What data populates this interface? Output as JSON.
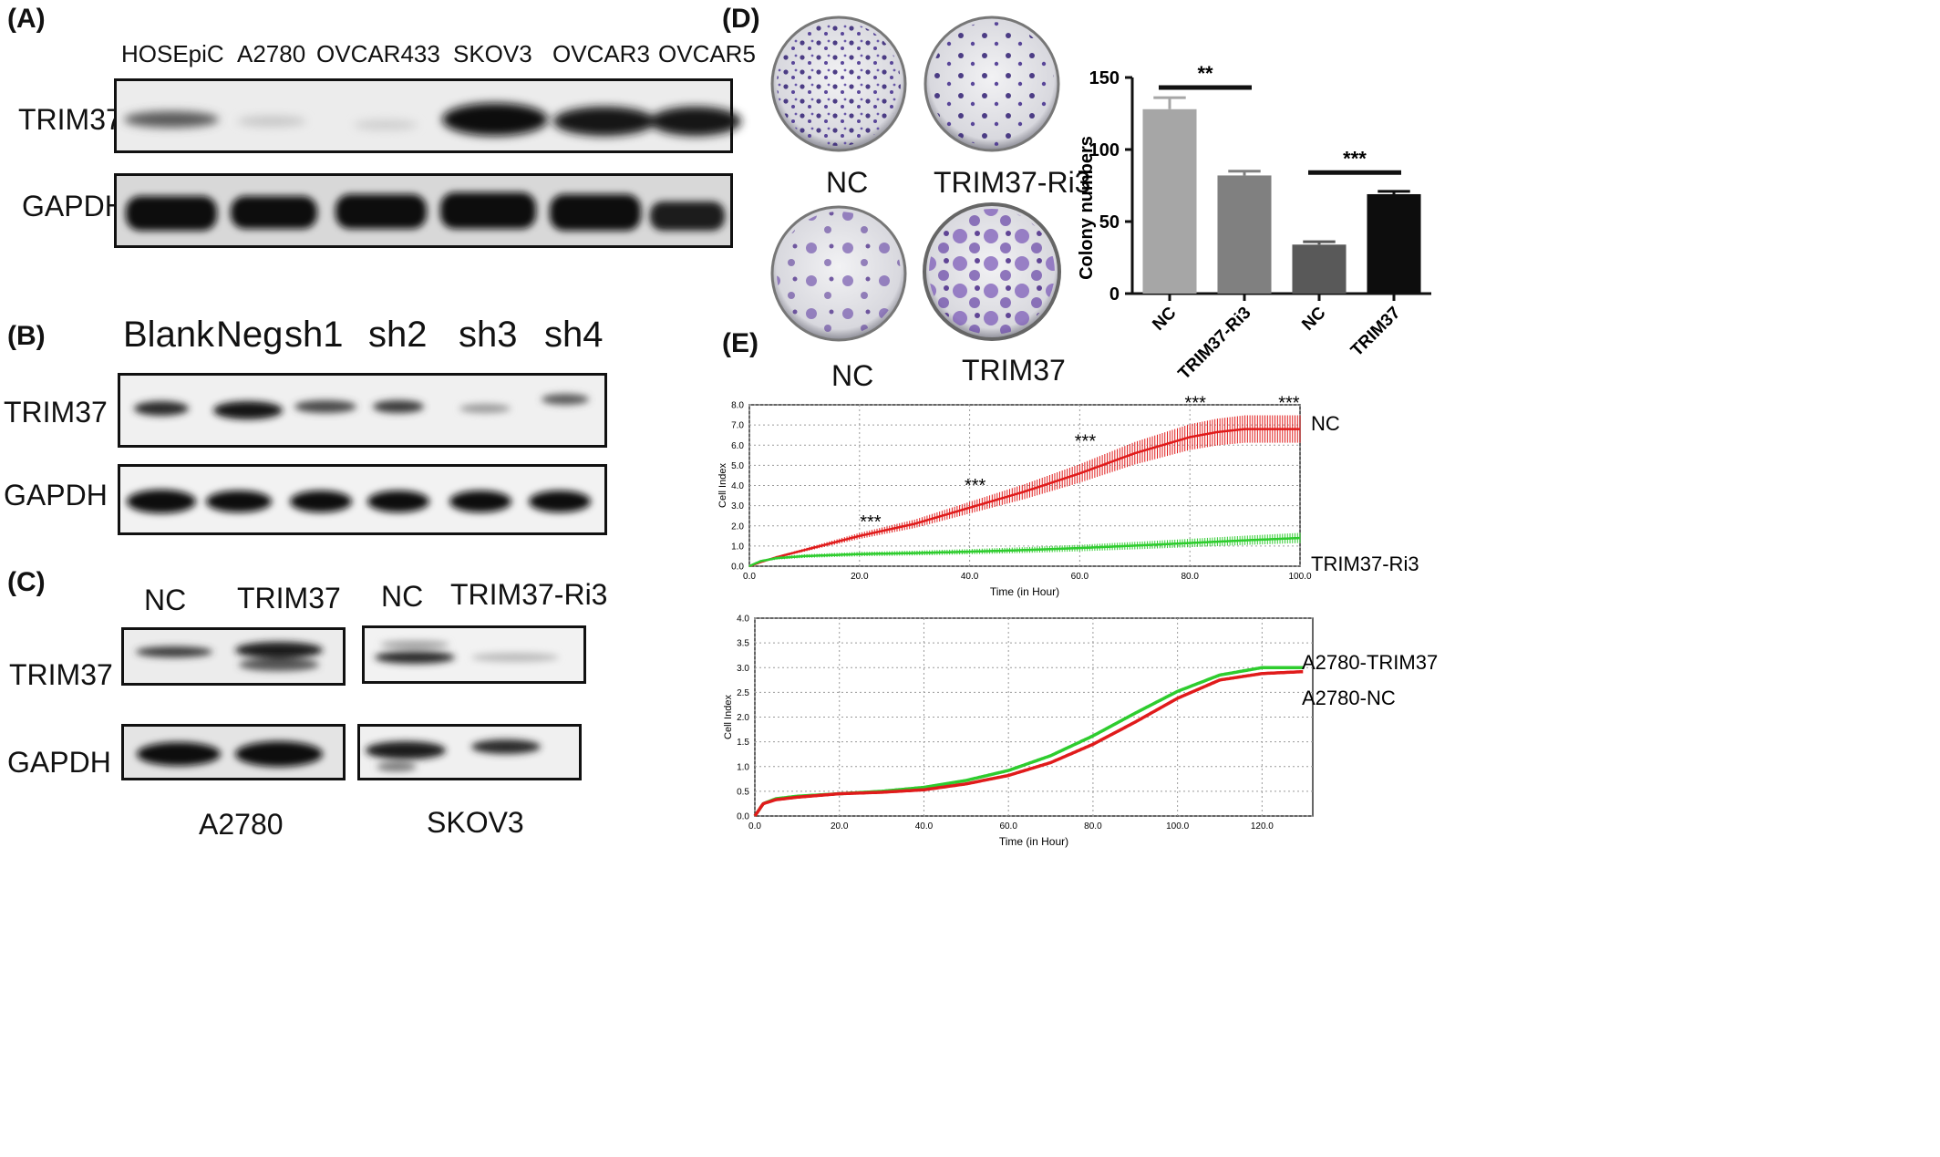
{
  "panels": {
    "a": "(A)",
    "b": "(B)",
    "c": "(C)",
    "d": "(D)",
    "e": "(E)"
  },
  "panel_a": {
    "lanes": [
      "HOSEpiC",
      "A2780",
      "OVCAR433",
      "SKOV3",
      "OVCAR3",
      "OVCAR5"
    ],
    "row1": "TRIM37",
    "row2": "GAPDH"
  },
  "panel_b": {
    "lanes": [
      "Blank",
      "Neg",
      "sh1",
      "sh2",
      "sh3",
      "sh4"
    ],
    "row1": "TRIM37",
    "row2": "GAPDH"
  },
  "panel_c": {
    "left_lanes": [
      "NC",
      "TRIM37"
    ],
    "right_lanes": [
      "NC",
      "TRIM37-Ri3"
    ],
    "row1": "TRIM37",
    "row2": "GAPDH",
    "left_cell": "A2780",
    "right_cell": "SKOV3"
  },
  "panel_d": {
    "top_labels": [
      "NC",
      "TRIM37-Ri3"
    ],
    "bottom_labels": [
      "NC",
      "TRIM37"
    ]
  },
  "chart_data": [
    {
      "type": "bar",
      "ylabel": "Colony numbers",
      "categories": [
        "NC",
        "TRIM37-Ri3",
        "NC",
        "TRIM37"
      ],
      "values": [
        128,
        82,
        34,
        69
      ],
      "errors": [
        8,
        3,
        2,
        2
      ],
      "colors": [
        "#a6a6a6",
        "#808080",
        "#595959",
        "#0d0d0d"
      ],
      "ylim": [
        0,
        150
      ],
      "yticks": [
        "0",
        "50",
        "100",
        "150"
      ],
      "significance": [
        "**",
        "***"
      ]
    },
    {
      "type": "line",
      "xlabel": "Time (in Hour)",
      "ylabel": "Cell Index",
      "xlim": [
        0,
        100
      ],
      "ylim": [
        0,
        8
      ],
      "xticks": [
        "0.0",
        "20.0",
        "40.0",
        "60.0",
        "80.0",
        "100.0"
      ],
      "yticks": [
        "0.0",
        "1.0",
        "2.0",
        "3.0",
        "4.0",
        "5.0",
        "6.0",
        "7.0",
        "8.0"
      ],
      "series": [
        {
          "name": "NC",
          "color": "#e01b1b",
          "x": [
            0,
            2,
            5,
            10,
            20,
            30,
            40,
            50,
            60,
            70,
            80,
            85,
            90,
            100
          ],
          "y": [
            0,
            0.2,
            0.45,
            0.8,
            1.5,
            2.1,
            2.9,
            3.7,
            4.6,
            5.6,
            6.4,
            6.65,
            6.8,
            6.8
          ]
        },
        {
          "name": "TRIM37-Ri3",
          "color": "#2ecc2e",
          "x": [
            0,
            2,
            5,
            10,
            20,
            30,
            40,
            50,
            60,
            70,
            80,
            90,
            100
          ],
          "y": [
            0,
            0.25,
            0.4,
            0.5,
            0.6,
            0.65,
            0.72,
            0.8,
            0.9,
            1.02,
            1.15,
            1.28,
            1.4
          ]
        }
      ],
      "annotations": [
        {
          "x": 22,
          "y": 1.9,
          "text": "***"
        },
        {
          "x": 41,
          "y": 3.7,
          "text": "***"
        },
        {
          "x": 61,
          "y": 5.9,
          "text": "***"
        },
        {
          "x": 81,
          "y": 7.8,
          "text": "***"
        },
        {
          "x": 98,
          "y": 7.8,
          "text": "***"
        }
      ]
    },
    {
      "type": "line",
      "xlabel": "Time (in Hour)",
      "ylabel": "Cell Index",
      "xlim": [
        0,
        132
      ],
      "ylim": [
        0,
        4
      ],
      "xticks": [
        "0.0",
        "20.0",
        "40.0",
        "60.0",
        "80.0",
        "100.0",
        "120.0"
      ],
      "yticks": [
        "0.0",
        "0.5",
        "1.0",
        "1.5",
        "2.0",
        "2.5",
        "3.0",
        "3.5",
        "4.0"
      ],
      "series": [
        {
          "name": "A2780-TRIM37",
          "color": "#2ecc2e",
          "x": [
            0,
            2,
            5,
            10,
            20,
            30,
            40,
            50,
            60,
            70,
            80,
            90,
            100,
            110,
            120,
            130
          ],
          "y": [
            0,
            0.25,
            0.35,
            0.4,
            0.45,
            0.5,
            0.58,
            0.72,
            0.92,
            1.22,
            1.62,
            2.08,
            2.52,
            2.85,
            3.0,
            3.0
          ]
        },
        {
          "name": "A2780-NC",
          "color": "#e01b1b",
          "x": [
            0,
            2,
            5,
            10,
            20,
            30,
            40,
            50,
            60,
            70,
            80,
            90,
            100,
            110,
            120,
            130
          ],
          "y": [
            0,
            0.25,
            0.33,
            0.38,
            0.45,
            0.48,
            0.53,
            0.65,
            0.82,
            1.08,
            1.45,
            1.9,
            2.38,
            2.75,
            2.88,
            2.92
          ]
        }
      ]
    }
  ]
}
